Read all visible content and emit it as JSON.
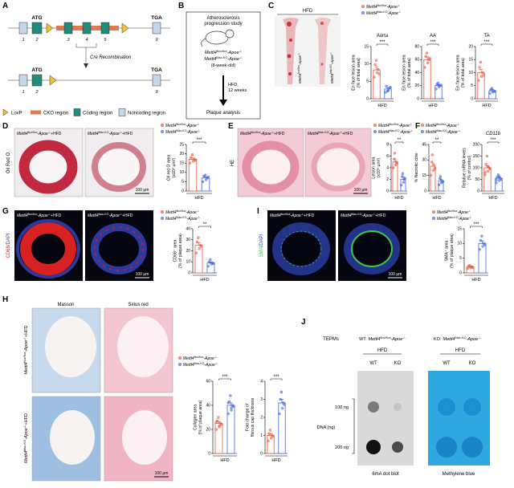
{
  "panel_labels": [
    "A",
    "B",
    "C",
    "D",
    "E",
    "F",
    "G",
    "H",
    "I",
    "J"
  ],
  "genotypes": {
    "flox": [
      "Mettl4",
      "flox/flox",
      "-Apoe",
      "-/-"
    ],
    "ko": [
      "Mettl4",
      "Mac-KO",
      "-Apoe",
      "-/-"
    ]
  },
  "suffix": "+HFD",
  "scale_bar": "100 µm",
  "panel_a": {
    "start_codon": "ATG",
    "stop_codon": "TGA",
    "exons": [
      "1",
      "2",
      "3",
      "4",
      "5",
      "9"
    ],
    "recombination": "Cre Recombination",
    "legend": [
      "LoxP",
      "CKO region",
      "Coding region",
      "Noncoding region"
    ]
  },
  "panel_b": {
    "title": [
      "Atherosclerosis",
      "progression study"
    ],
    "age": "(8-week-old)",
    "treatment": [
      "HFD,",
      "12 weeks"
    ],
    "outcome": "Plaque analysis"
  },
  "panel_c": {
    "header": "HFD"
  },
  "panel_d": {
    "stain": "Oil Red O"
  },
  "panel_e": {
    "stain": "HE"
  },
  "panel_g": {
    "stain": [
      "CD68",
      "/DAPI"
    ]
  },
  "panel_i": {
    "stain": [
      "SMA",
      "/DAPI"
    ]
  },
  "panel_h": {
    "stains": [
      "Masson",
      "Sirius red"
    ]
  },
  "panel_j": {
    "cells": "TEPMs",
    "prefixes": [
      "WT:",
      "KO:"
    ],
    "header": "HFD",
    "lanes": [
      "WT",
      "KO"
    ],
    "amounts": [
      "100 ng",
      "200 ng"
    ],
    "axis": "DNA (ng)",
    "captions": [
      "6mA dot blot",
      "Methylene blue"
    ]
  },
  "chart_data": [
    {
      "type": "bar",
      "title": "Aorta",
      "ylabel": [
        "En face lesion area",
        "(% of total area)"
      ],
      "xlabel": "HFD",
      "ylim": [
        0,
        15
      ],
      "yticks": [
        0,
        5,
        10,
        15
      ],
      "significance": "***",
      "series": [
        {
          "color": "#e8553f",
          "values": [
            8.3
          ],
          "errors": [
            0.9
          ],
          "points": [
            6.2,
            7.5,
            8.4,
            9.8,
            11,
            7.1
          ]
        },
        {
          "color": "#3f66e0",
          "values": [
            2.8
          ],
          "errors": [
            0.4
          ],
          "points": [
            1.8,
            2.4,
            3.1,
            3.6,
            2.2,
            3.3
          ]
        }
      ]
    },
    {
      "type": "bar",
      "title": "AA",
      "ylabel": [
        "En face lesion area",
        "(% of total area)"
      ],
      "xlabel": "HFD",
      "ylim": [
        0,
        80
      ],
      "yticks": [
        0,
        20,
        40,
        60,
        80
      ],
      "significance": "***",
      "series": [
        {
          "color": "#e8553f",
          "values": [
            60
          ],
          "errors": [
            4
          ],
          "points": [
            48,
            55,
            60,
            65,
            70,
            62
          ]
        },
        {
          "color": "#3f66e0",
          "values": [
            20
          ],
          "errors": [
            2
          ],
          "points": [
            15,
            18,
            20,
            22,
            24,
            21
          ]
        }
      ]
    },
    {
      "type": "bar",
      "title": "TA",
      "ylabel": [
        "En face lesion area",
        "(% of total area)"
      ],
      "xlabel": "HFD",
      "ylim": [
        0,
        20
      ],
      "yticks": [
        0,
        5,
        10,
        15,
        20
      ],
      "significance": "***",
      "series": [
        {
          "color": "#e8553f",
          "values": [
            10
          ],
          "errors": [
            1.2
          ],
          "points": [
            7,
            8.5,
            10,
            12,
            14,
            9
          ]
        },
        {
          "color": "#3f66e0",
          "values": [
            3
          ],
          "errors": [
            0.5
          ],
          "points": [
            2,
            2.5,
            3,
            3.5,
            4,
            2.8
          ]
        }
      ]
    },
    {
      "type": "bar",
      "ylabel": [
        "Oil red O area",
        "(x10⁴ µm²)"
      ],
      "xlabel": "HFD",
      "ylim": [
        0,
        25
      ],
      "yticks": [
        0,
        5,
        10,
        15,
        20,
        25
      ],
      "significance": "***",
      "series": [
        {
          "color": "#e8553f",
          "values": [
            17
          ],
          "errors": [
            0.8
          ],
          "points": [
            15,
            16,
            17,
            18,
            19.5,
            16.5
          ]
        },
        {
          "color": "#3f66e0",
          "values": [
            7
          ],
          "errors": [
            0.7
          ],
          "points": [
            5,
            6,
            7,
            8,
            8.5,
            7.5
          ]
        }
      ]
    },
    {
      "type": "bar",
      "ylabel": [
        "Lesion area",
        "(x10⁵ µm²)"
      ],
      "xlabel": "HFD",
      "ylim": [
        0,
        8
      ],
      "yticks": [
        0,
        2,
        4,
        6,
        8
      ],
      "significance": "**",
      "series": [
        {
          "color": "#e8553f",
          "values": [
            5
          ],
          "errors": [
            0.5
          ],
          "points": [
            4,
            4.5,
            5,
            5.5,
            6.5,
            4.8
          ]
        },
        {
          "color": "#3f66e0",
          "values": [
            2
          ],
          "errors": [
            0.4
          ],
          "points": [
            1,
            1.5,
            2,
            2.5,
            3,
            2.2
          ]
        }
      ]
    },
    {
      "type": "bar",
      "ylabel": [
        "% Necrotic core"
      ],
      "xlabel": "HFD",
      "ylim": [
        0,
        45
      ],
      "yticks": [
        0,
        15,
        30,
        45
      ],
      "significance": "**",
      "series": [
        {
          "color": "#e8553f",
          "values": [
            24
          ],
          "errors": [
            3
          ],
          "points": [
            15,
            20,
            25,
            28,
            35,
            22
          ]
        },
        {
          "color": "#3f66e0",
          "values": [
            10
          ],
          "errors": [
            1.5
          ],
          "points": [
            6,
            8,
            10,
            12,
            14,
            9
          ]
        }
      ]
    },
    {
      "type": "bar",
      "title": "CD11b",
      "ylabel": [
        "Relative mRNA levels",
        "(% of control)"
      ],
      "xlabel": "HFD",
      "ylim": [
        0,
        200
      ],
      "yticks": [
        0,
        50,
        100,
        150,
        200
      ],
      "significance": "***",
      "series": [
        {
          "color": "#e8553f",
          "values": [
            100
          ],
          "errors": [
            8
          ],
          "points": [
            70,
            85,
            100,
            115,
            150,
            95,
            80,
            105
          ]
        },
        {
          "color": "#3f66e0",
          "values": [
            55
          ],
          "errors": [
            5
          ],
          "points": [
            35,
            45,
            55,
            60,
            70,
            50,
            48,
            62
          ]
        }
      ]
    },
    {
      "type": "bar",
      "ylabel": [
        "CD68⁺ area",
        "(% of plaque area)"
      ],
      "xlabel": "HFD",
      "ylim": [
        0,
        40
      ],
      "yticks": [
        0,
        10,
        20,
        30,
        40
      ],
      "significance": "**",
      "series": [
        {
          "color": "#e8553f",
          "values": [
            25
          ],
          "errors": [
            2.5
          ],
          "points": [
            18,
            22,
            25,
            28,
            32,
            24
          ]
        },
        {
          "color": "#3f66e0",
          "values": [
            9
          ],
          "errors": [
            1
          ],
          "points": [
            6,
            8,
            9,
            10,
            12,
            8.5
          ]
        }
      ]
    },
    {
      "type": "bar",
      "ylabel": [
        "SMA⁺ area",
        "(% of plaque area)"
      ],
      "xlabel": "HFD",
      "ylim": [
        0,
        15
      ],
      "yticks": [
        0,
        5,
        10,
        15
      ],
      "significance": "***",
      "series": [
        {
          "color": "#e8553f",
          "values": [
            2
          ],
          "errors": [
            0.3
          ],
          "points": [
            1.5,
            1.8,
            2,
            2.3,
            2.5,
            1.9
          ]
        },
        {
          "color": "#3f66e0",
          "values": [
            10
          ],
          "errors": [
            0.9
          ],
          "points": [
            8,
            9,
            10,
            11,
            12.5,
            9.5
          ]
        }
      ]
    },
    {
      "type": "bar",
      "ylabel": [
        "Collagen area",
        "(% of plaque area)"
      ],
      "xlabel": "HFD",
      "ylim": [
        0,
        60
      ],
      "yticks": [
        0,
        20,
        40,
        60
      ],
      "significance": "***",
      "series": [
        {
          "color": "#e8553f",
          "values": [
            25
          ],
          "errors": [
            1.5
          ],
          "points": [
            20,
            22,
            25,
            27,
            30,
            24,
            26,
            23
          ]
        },
        {
          "color": "#3f66e0",
          "values": [
            40
          ],
          "errors": [
            2
          ],
          "points": [
            33,
            36,
            40,
            43,
            48,
            39,
            42,
            38
          ]
        }
      ]
    },
    {
      "type": "bar",
      "ylabel": [
        "Fold change of",
        "fibrous cap thickness"
      ],
      "xlabel": "HFD",
      "ylim": [
        0,
        4
      ],
      "yticks": [
        0,
        1,
        2,
        3,
        4
      ],
      "significance": "***",
      "series": [
        {
          "color": "#e8553f",
          "values": [
            1
          ],
          "errors": [
            0.1
          ],
          "points": [
            0.7,
            0.85,
            1,
            1.1,
            1.3,
            0.95
          ]
        },
        {
          "color": "#3f66e0",
          "values": [
            2.8
          ],
          "errors": [
            0.2
          ],
          "points": [
            2.2,
            2.5,
            2.8,
            3,
            3.4,
            2.7
          ]
        }
      ]
    }
  ]
}
